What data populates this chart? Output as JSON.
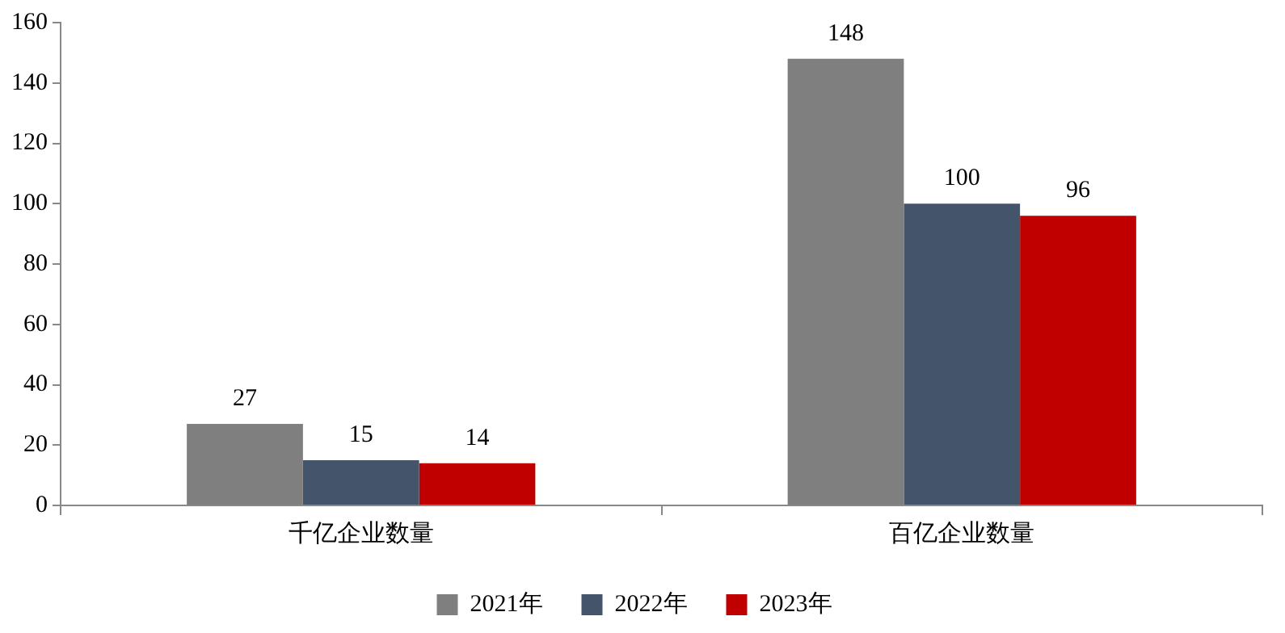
{
  "chart_data": {
    "type": "bar",
    "categories": [
      "千亿企业数量",
      "百亿企业数量"
    ],
    "series": [
      {
        "name": "2021年",
        "color": "#7f7f7f",
        "values": [
          27,
          148
        ]
      },
      {
        "name": "2022年",
        "color": "#44546a",
        "values": [
          15,
          100
        ]
      },
      {
        "name": "2023年",
        "color": "#c00000",
        "values": [
          14,
          96
        ]
      }
    ],
    "ylim": [
      0,
      160
    ],
    "yticks": [
      0,
      20,
      40,
      60,
      80,
      100,
      120,
      140,
      160
    ],
    "grid": false,
    "legend": "bottom",
    "data_labels": true
  }
}
